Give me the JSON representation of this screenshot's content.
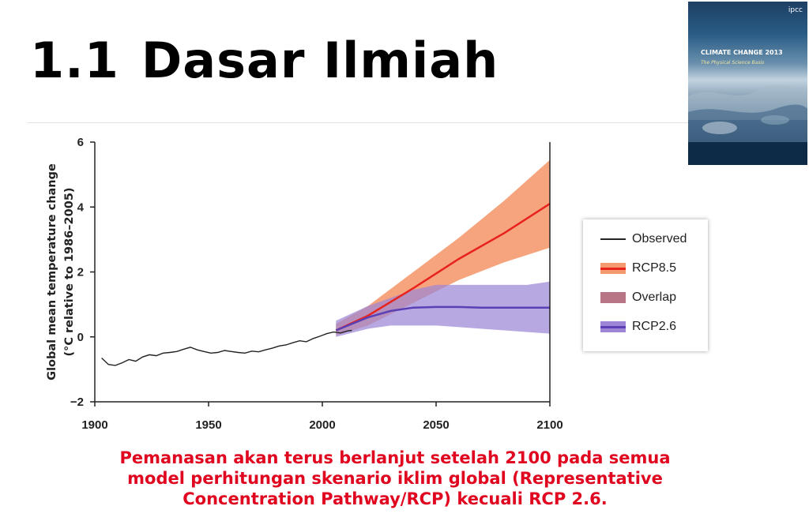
{
  "slide": {
    "title_number": "1.1",
    "title_text": "Dasar Ilmiah",
    "caption_lines": [
      "Pemanasan akan terus berlanjut setelah 2100 pada semua",
      "model perhitungan skenario iklim global (Representative",
      "Concentration Pathway/RCP)  kecuali RCP 2.6."
    ]
  },
  "cover": {
    "publisher": "ipcc",
    "title": "CLIMATE CHANGE 2013",
    "subtitle": "The Physical Science Basis"
  },
  "colors": {
    "rcp85_line": "#e8231d",
    "rcp85_band": "#f59a6f",
    "rcp26_line": "#5b3fb5",
    "rcp26_band": "#9d86d6",
    "overlap": "#b87585",
    "observed": "#222222",
    "caption": "#e0061f"
  },
  "chart_data": {
    "type": "line",
    "ylabel_line1": "Global mean temperature change",
    "ylabel_line2": "(°C relative to 1986–2005)",
    "xlim": [
      1900,
      2100
    ],
    "ylim": [
      -2,
      6
    ],
    "xticks": [
      1900,
      1950,
      2000,
      2050,
      2100
    ],
    "yticks": [
      -2,
      0,
      2,
      4,
      6
    ],
    "legend": [
      "Observed",
      "RCP8.5",
      "Overlap",
      "RCP2.6"
    ],
    "legend_position": "right",
    "series": [
      {
        "name": "Observed",
        "x": [
          1903,
          1906,
          1909,
          1912,
          1915,
          1918,
          1921,
          1924,
          1927,
          1930,
          1933,
          1936,
          1939,
          1942,
          1945,
          1948,
          1951,
          1954,
          1957,
          1960,
          1963,
          1966,
          1969,
          1972,
          1975,
          1978,
          1981,
          1984,
          1987,
          1990,
          1993,
          1996,
          1999,
          2002,
          2005,
          2008,
          2011,
          2013
        ],
        "y": [
          -0.65,
          -0.85,
          -0.88,
          -0.8,
          -0.7,
          -0.75,
          -0.62,
          -0.55,
          -0.58,
          -0.5,
          -0.48,
          -0.45,
          -0.38,
          -0.32,
          -0.4,
          -0.45,
          -0.5,
          -0.48,
          -0.42,
          -0.45,
          -0.48,
          -0.5,
          -0.44,
          -0.46,
          -0.4,
          -0.35,
          -0.28,
          -0.25,
          -0.18,
          -0.12,
          -0.15,
          -0.05,
          0.02,
          0.1,
          0.15,
          0.12,
          0.18,
          0.2
        ]
      },
      {
        "name": "RCP8.5",
        "x": [
          2006,
          2020,
          2040,
          2060,
          2080,
          2100
        ],
        "y": [
          0.2,
          0.65,
          1.5,
          2.4,
          3.2,
          4.1
        ],
        "lower": [
          0.05,
          0.35,
          1.05,
          1.75,
          2.3,
          2.75
        ],
        "upper": [
          0.4,
          0.95,
          2.0,
          3.05,
          4.2,
          5.45
        ]
      },
      {
        "name": "RCP2.6",
        "x": [
          2006,
          2020,
          2030,
          2040,
          2050,
          2060,
          2070,
          2080,
          2090,
          2100
        ],
        "y": [
          0.2,
          0.6,
          0.8,
          0.9,
          0.92,
          0.92,
          0.9,
          0.9,
          0.9,
          0.9
        ],
        "lower": [
          0.0,
          0.25,
          0.35,
          0.35,
          0.35,
          0.3,
          0.25,
          0.2,
          0.15,
          0.1
        ],
        "upper": [
          0.5,
          0.95,
          1.2,
          1.45,
          1.6,
          1.6,
          1.6,
          1.6,
          1.6,
          1.7
        ]
      }
    ]
  }
}
